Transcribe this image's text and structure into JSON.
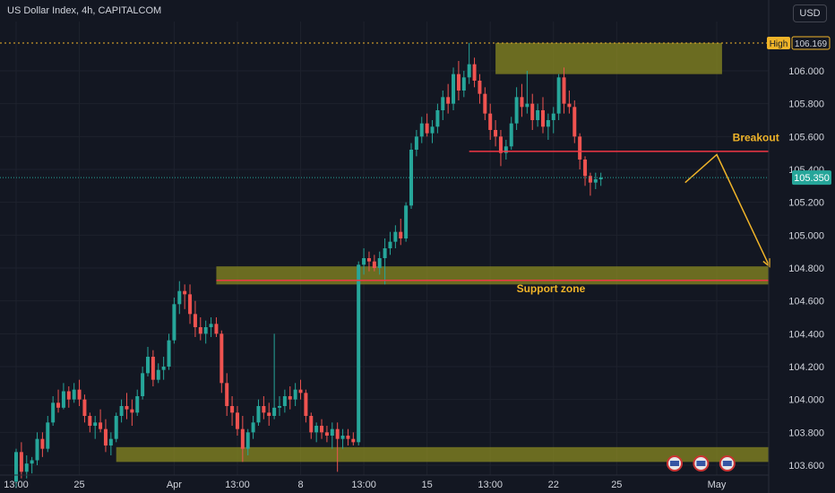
{
  "header": {
    "title": "US Dollar Index, 4h, CAPITALCOM",
    "currency": "USD"
  },
  "colors": {
    "background": "#131722",
    "up": "#26a69a",
    "down": "#ef5350",
    "zone": "#8a8a22",
    "annotation": "#f0b429",
    "resistance_line": "#f23645",
    "axis_text": "#d1d4dc",
    "grid": "#1e222d"
  },
  "chart_data": {
    "type": "candlestick",
    "ylim": [
      103.54,
      106.3
    ],
    "y_ticks": [
      106.0,
      105.8,
      105.6,
      105.4,
      105.2,
      105.0,
      104.8,
      104.6,
      104.4,
      104.2,
      104.0,
      103.8,
      103.6
    ],
    "y_tick_labels": [
      "106.000",
      "105.800",
      "105.600",
      "105.400",
      "105.200",
      "105.000",
      "104.800",
      "104.600",
      "104.400",
      "104.200",
      "104.000",
      "103.800",
      "103.600"
    ],
    "x_tick_labels": [
      {
        "label": "13:00",
        "bar": 0
      },
      {
        "label": "25",
        "bar": 12
      },
      {
        "label": "Apr",
        "bar": 30
      },
      {
        "label": "13:00",
        "bar": 42
      },
      {
        "label": "8",
        "bar": 54
      },
      {
        "label": "13:00",
        "bar": 66
      },
      {
        "label": "15",
        "bar": 78
      },
      {
        "label": "13:00",
        "bar": 90
      },
      {
        "label": "22",
        "bar": 102
      },
      {
        "label": "25",
        "bar": 114
      },
      {
        "label": "May",
        "bar": 133
      }
    ],
    "high_label": {
      "text": "High",
      "value": 106.169,
      "value_label": "106.169"
    },
    "last_price": {
      "value": 105.35,
      "label": "105.350"
    },
    "candles": [
      [
        103.5,
        103.7,
        103.46,
        103.68
      ],
      [
        103.68,
        103.74,
        103.52,
        103.56
      ],
      [
        103.56,
        103.66,
        103.52,
        103.61
      ],
      [
        103.61,
        103.65,
        103.55,
        103.63
      ],
      [
        103.63,
        103.8,
        103.6,
        103.76
      ],
      [
        103.76,
        103.8,
        103.65,
        103.7
      ],
      [
        103.7,
        103.9,
        103.68,
        103.86
      ],
      [
        103.86,
        104.02,
        103.84,
        103.98
      ],
      [
        103.98,
        104.06,
        103.92,
        103.95
      ],
      [
        103.95,
        104.1,
        103.94,
        104.05
      ],
      [
        104.05,
        104.08,
        103.95,
        104.0
      ],
      [
        104.0,
        104.1,
        103.98,
        104.06
      ],
      [
        104.06,
        104.12,
        103.96,
        104.0
      ],
      [
        104.0,
        104.03,
        103.86,
        103.9
      ],
      [
        103.9,
        103.92,
        103.8,
        103.84
      ],
      [
        103.84,
        103.9,
        103.76,
        103.86
      ],
      [
        103.86,
        103.94,
        103.8,
        103.82
      ],
      [
        103.82,
        103.88,
        103.68,
        103.72
      ],
      [
        103.72,
        103.8,
        103.66,
        103.76
      ],
      [
        103.76,
        103.92,
        103.74,
        103.9
      ],
      [
        103.9,
        104.0,
        103.86,
        103.96
      ],
      [
        103.96,
        104.04,
        103.88,
        103.94
      ],
      [
        103.94,
        104.0,
        103.84,
        103.92
      ],
      [
        103.92,
        104.06,
        103.9,
        104.02
      ],
      [
        104.02,
        104.2,
        104.0,
        104.16
      ],
      [
        104.16,
        104.32,
        104.14,
        104.26
      ],
      [
        104.26,
        104.3,
        104.08,
        104.12
      ],
      [
        104.12,
        104.22,
        104.1,
        104.18
      ],
      [
        104.18,
        104.26,
        104.12,
        104.2
      ],
      [
        104.2,
        104.4,
        104.18,
        104.36
      ],
      [
        104.36,
        104.62,
        104.34,
        104.58
      ],
      [
        104.58,
        104.72,
        104.52,
        104.66
      ],
      [
        104.66,
        104.7,
        104.55,
        104.64
      ],
      [
        104.64,
        104.7,
        104.46,
        104.52
      ],
      [
        104.52,
        104.6,
        104.38,
        104.44
      ],
      [
        104.44,
        104.5,
        104.36,
        104.4
      ],
      [
        104.4,
        104.48,
        104.34,
        104.44
      ],
      [
        104.44,
        104.5,
        104.38,
        104.46
      ],
      [
        104.46,
        104.5,
        104.38,
        104.4
      ],
      [
        104.4,
        104.42,
        104.04,
        104.1
      ],
      [
        104.1,
        104.16,
        103.9,
        103.96
      ],
      [
        103.96,
        104.02,
        103.84,
        103.92
      ],
      [
        103.92,
        103.96,
        103.78,
        103.82
      ],
      [
        103.82,
        103.9,
        103.62,
        103.7
      ],
      [
        103.7,
        103.82,
        103.66,
        103.8
      ],
      [
        103.8,
        103.9,
        103.76,
        103.86
      ],
      [
        103.86,
        104.0,
        103.84,
        103.96
      ],
      [
        103.96,
        104.02,
        103.88,
        103.92
      ],
      [
        103.92,
        103.98,
        103.84,
        103.9
      ],
      [
        103.9,
        104.4,
        103.88,
        103.95
      ],
      [
        103.95,
        104.02,
        103.9,
        103.96
      ],
      [
        103.96,
        104.06,
        103.92,
        104.02
      ],
      [
        104.02,
        104.08,
        103.94,
        104.0
      ],
      [
        104.0,
        104.1,
        103.96,
        104.06
      ],
      [
        104.06,
        104.12,
        104.0,
        104.04
      ],
      [
        104.04,
        104.06,
        103.86,
        103.9
      ],
      [
        103.9,
        103.92,
        103.76,
        103.8
      ],
      [
        103.8,
        103.86,
        103.74,
        103.84
      ],
      [
        103.84,
        103.88,
        103.76,
        103.8
      ],
      [
        103.8,
        103.84,
        103.74,
        103.78
      ],
      [
        103.78,
        103.86,
        103.7,
        103.82
      ],
      [
        103.82,
        103.86,
        103.56,
        103.76
      ],
      [
        103.76,
        103.82,
        103.7,
        103.78
      ],
      [
        103.78,
        103.82,
        103.72,
        103.76
      ],
      [
        103.76,
        103.8,
        103.72,
        103.74
      ],
      [
        103.74,
        104.84,
        103.72,
        104.82
      ],
      [
        104.82,
        104.92,
        104.76,
        104.86
      ],
      [
        104.86,
        104.9,
        104.78,
        104.84
      ],
      [
        104.84,
        104.88,
        104.78,
        104.8
      ],
      [
        104.8,
        104.9,
        104.76,
        104.86
      ],
      [
        104.86,
        104.98,
        104.7,
        104.92
      ],
      [
        104.92,
        105.02,
        104.88,
        104.96
      ],
      [
        104.96,
        105.06,
        104.92,
        105.02
      ],
      [
        105.02,
        105.1,
        104.94,
        104.98
      ],
      [
        104.98,
        105.2,
        104.96,
        105.18
      ],
      [
        105.18,
        105.56,
        105.16,
        105.52
      ],
      [
        105.52,
        105.64,
        105.48,
        105.6
      ],
      [
        105.6,
        105.72,
        105.56,
        105.68
      ],
      [
        105.68,
        105.74,
        105.6,
        105.62
      ],
      [
        105.62,
        105.7,
        105.56,
        105.66
      ],
      [
        105.66,
        105.8,
        105.62,
        105.76
      ],
      [
        105.76,
        105.88,
        105.7,
        105.84
      ],
      [
        105.84,
        105.92,
        105.74,
        105.8
      ],
      [
        105.8,
        106.02,
        105.76,
        105.98
      ],
      [
        105.98,
        106.06,
        105.82,
        105.88
      ],
      [
        105.88,
        106.0,
        105.84,
        105.96
      ],
      [
        105.96,
        106.17,
        105.92,
        106.04
      ],
      [
        106.04,
        106.08,
        105.9,
        105.94
      ],
      [
        105.94,
        105.98,
        105.8,
        105.86
      ],
      [
        105.86,
        105.9,
        105.7,
        105.74
      ],
      [
        105.74,
        105.8,
        105.58,
        105.64
      ],
      [
        105.64,
        105.7,
        105.54,
        105.6
      ],
      [
        105.6,
        105.64,
        105.42,
        105.5
      ],
      [
        105.5,
        105.58,
        105.46,
        105.54
      ],
      [
        105.54,
        105.72,
        105.52,
        105.68
      ],
      [
        105.68,
        105.9,
        105.64,
        105.84
      ],
      [
        105.84,
        105.92,
        105.72,
        105.78
      ],
      [
        105.78,
        106.0,
        105.74,
        105.8
      ],
      [
        105.8,
        105.86,
        105.64,
        105.7
      ],
      [
        105.7,
        105.8,
        105.66,
        105.76
      ],
      [
        105.76,
        105.84,
        105.62,
        105.66
      ],
      [
        105.66,
        105.74,
        105.58,
        105.7
      ],
      [
        105.7,
        105.78,
        105.62,
        105.74
      ],
      [
        105.74,
        105.98,
        105.7,
        105.96
      ],
      [
        105.96,
        106.02,
        105.74,
        105.8
      ],
      [
        105.8,
        105.88,
        105.74,
        105.78
      ],
      [
        105.78,
        105.82,
        105.56,
        105.6
      ],
      [
        105.6,
        105.62,
        105.4,
        105.46
      ],
      [
        105.46,
        105.48,
        105.3,
        105.36
      ],
      [
        105.36,
        105.38,
        105.24,
        105.32
      ],
      [
        105.32,
        105.38,
        105.28,
        105.34
      ],
      [
        105.34,
        105.38,
        105.3,
        105.35
      ]
    ],
    "zones": [
      {
        "name": "top-zone",
        "y1": 105.98,
        "y2": 106.17,
        "bar_start": 91,
        "bar_end": 134
      },
      {
        "name": "support-zone",
        "y1": 104.7,
        "y2": 104.81,
        "bar_start": 38,
        "bar_end": 160
      },
      {
        "name": "bottom-zone",
        "y1": 103.62,
        "y2": 103.71,
        "bar_start": 19,
        "bar_end": 160
      }
    ],
    "horizontal_lines": [
      {
        "name": "breakout-line",
        "y": 105.51,
        "bar_start": 86,
        "bar_end": 160
      },
      {
        "name": "support-line",
        "y": 104.725,
        "bar_start": 38,
        "bar_end": 160
      }
    ],
    "projection_path": [
      {
        "bar": 127,
        "y": 105.32
      },
      {
        "bar": 133,
        "y": 105.49
      },
      {
        "bar": 143,
        "y": 104.81
      }
    ],
    "annotations": [
      {
        "text": "Breakout",
        "bar": 136,
        "y": 105.55
      },
      {
        "text": "Support zone",
        "bar": 95,
        "y": 104.63
      }
    ],
    "event_icons": [
      {
        "bar": 125
      },
      {
        "bar": 130
      },
      {
        "bar": 135
      }
    ]
  }
}
